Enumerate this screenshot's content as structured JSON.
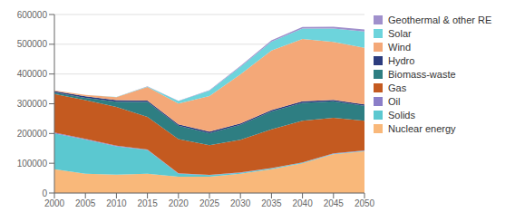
{
  "chart_data": {
    "type": "area",
    "stacked": true,
    "grid": true,
    "legend": "right",
    "x": [
      2000,
      2005,
      2010,
      2015,
      2020,
      2025,
      2030,
      2035,
      2040,
      2045,
      2050
    ],
    "xlim": [
      2000,
      2050
    ],
    "xticks": [
      2000,
      2005,
      2010,
      2015,
      2020,
      2025,
      2030,
      2035,
      2040,
      2045,
      2050
    ],
    "ylim": [
      0,
      600000
    ],
    "yticks": [
      0,
      100000,
      200000,
      300000,
      400000,
      500000,
      600000
    ],
    "series": [
      {
        "name": "Nuclear energy",
        "color": "#F9B87A",
        "values": [
          80000,
          65000,
          62000,
          65000,
          55000,
          55000,
          65000,
          80000,
          100000,
          130000,
          140000
        ]
      },
      {
        "name": "Solids",
        "color": "#5BC8D0",
        "values": [
          120000,
          115000,
          95000,
          80000,
          10000,
          5000,
          3000,
          3000,
          2000,
          2000,
          2000
        ]
      },
      {
        "name": "Oil",
        "color": "#8B7EC8",
        "values": [
          3000,
          2000,
          2000,
          1000,
          1000,
          1000,
          1000,
          1000,
          1000,
          1000,
          1000
        ]
      },
      {
        "name": "Gas",
        "color": "#C45A20",
        "values": [
          130000,
          130000,
          130000,
          110000,
          115000,
          100000,
          110000,
          130000,
          140000,
          120000,
          100000
        ]
      },
      {
        "name": "Biomass-waste",
        "color": "#2E7E82",
        "values": [
          5000,
          8000,
          18000,
          50000,
          45000,
          40000,
          50000,
          60000,
          60000,
          55000,
          50000
        ]
      },
      {
        "name": "Hydro",
        "color": "#2C3C7E",
        "values": [
          5000,
          5000,
          5000,
          5000,
          5000,
          5000,
          5000,
          5000,
          5000,
          5000,
          5000
        ]
      },
      {
        "name": "Wind",
        "color": "#F4A878",
        "values": [
          2000,
          5000,
          10000,
          45000,
          70000,
          120000,
          165000,
          200000,
          210000,
          195000,
          190000
        ]
      },
      {
        "name": "Solar",
        "color": "#6DD4DC",
        "values": [
          0,
          0,
          500,
          2000,
          8000,
          18000,
          25000,
          30000,
          35000,
          45000,
          55000
        ]
      },
      {
        "name": "Geothermal & other RE",
        "color": "#A090CC",
        "values": [
          0,
          0,
          0,
          500,
          1000,
          2000,
          3000,
          4000,
          5000,
          6000,
          7000
        ]
      }
    ]
  }
}
